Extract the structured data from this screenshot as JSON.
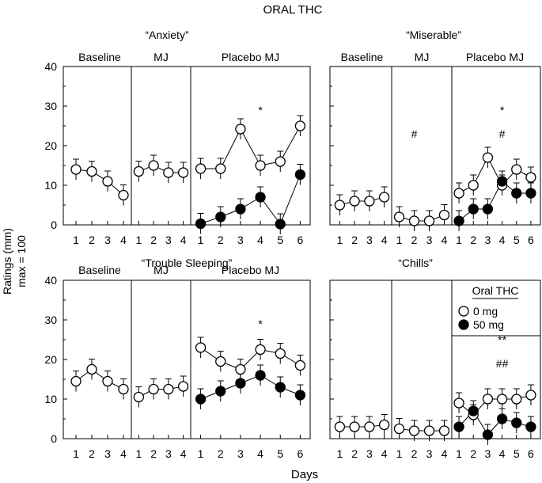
{
  "figure": {
    "title": "ORAL THC",
    "ylabel_line1": "Ratings (mm)",
    "ylabel_line2": "max = 100",
    "xlabel": "Days"
  },
  "legend": {
    "title": "Oral THC",
    "items": [
      {
        "label": "0 mg",
        "marker": "open-circle"
      },
      {
        "label": "50 mg",
        "marker": "filled-circle"
      }
    ],
    "placement": "top-right of Chills panel"
  },
  "chart_data": [
    {
      "type": "line",
      "title": "“Anxiety”",
      "phases": [
        "Baseline",
        "MJ",
        "Placebo MJ"
      ],
      "phase_days": [
        [
          "1",
          "2",
          "3",
          "4"
        ],
        [
          "1",
          "2",
          "3",
          "4"
        ],
        [
          "1",
          "2",
          "3",
          "4",
          "5",
          "6"
        ]
      ],
      "ylim": [
        0,
        40
      ],
      "yticks": [
        "0",
        "10",
        "20",
        "30",
        "40"
      ],
      "series": [
        {
          "name": "0 mg",
          "segments": [
            [
              14,
              13.5,
              11,
              7.5
            ],
            [
              13.5,
              15,
              13.2,
              13.2
            ],
            [
              14.2,
              14.2,
              24.2,
              15,
              16,
              25
            ]
          ]
        },
        {
          "name": "50 mg",
          "segments": [
            [],
            [],
            [
              0.3,
              2,
              4,
              7,
              0.2,
              12.7
            ]
          ]
        }
      ],
      "annotations": [
        {
          "text": "*",
          "phase": 2,
          "day": 4
        }
      ]
    },
    {
      "type": "line",
      "title": "“Miserable”",
      "phases": [
        "Baseline",
        "MJ",
        "Placebo MJ"
      ],
      "phase_days": [
        [
          "1",
          "2",
          "3",
          "4"
        ],
        [
          "1",
          "2",
          "3",
          "4"
        ],
        [
          "1",
          "2",
          "3",
          "4",
          "5",
          "6"
        ]
      ],
      "ylim": [
        0,
        40
      ],
      "yticks": [
        "0",
        "10",
        "20",
        "30",
        "40"
      ],
      "series": [
        {
          "name": "0 mg",
          "segments": [
            [
              5,
              6,
              6,
              7
            ],
            [
              2,
              1,
              1,
              2.5
            ],
            [
              8,
              10,
              17,
              10,
              14,
              12
            ]
          ]
        },
        {
          "name": "50 mg",
          "segments": [
            [],
            [],
            [
              1,
              4,
              4,
              11,
              8,
              8
            ]
          ]
        }
      ],
      "annotations": [
        {
          "text": "#",
          "phase": 1,
          "day": 2
        },
        {
          "text": "*",
          "phase": 2,
          "day": 4
        },
        {
          "text": "#",
          "phase": 2,
          "day": 4
        }
      ]
    },
    {
      "type": "line",
      "title": "“Trouble Sleeping”",
      "phases": [
        "Baseline",
        "MJ",
        "Placebo MJ"
      ],
      "phase_days": [
        [
          "1",
          "2",
          "3",
          "4"
        ],
        [
          "1",
          "2",
          "3",
          "4"
        ],
        [
          "1",
          "2",
          "3",
          "4",
          "5",
          "6"
        ]
      ],
      "ylim": [
        0,
        40
      ],
      "yticks": [
        "0",
        "10",
        "20",
        "30",
        "40"
      ],
      "series": [
        {
          "name": "0 mg",
          "segments": [
            [
              14.5,
              17.5,
              14.5,
              12.5
            ],
            [
              10.5,
              12.5,
              12.5,
              13.2
            ],
            [
              23,
              19.5,
              17.5,
              22.5,
              21.5,
              18.5
            ]
          ]
        },
        {
          "name": "50 mg",
          "segments": [
            [],
            [],
            [
              10,
              12,
              14,
              16,
              13,
              11
            ]
          ]
        }
      ],
      "annotations": [
        {
          "text": "*",
          "phase": 2,
          "day": 4
        }
      ]
    },
    {
      "type": "line",
      "title": "“Chills”",
      "phases": [],
      "phase_days": [
        [
          "1",
          "2",
          "3",
          "4"
        ],
        [
          "1",
          "2",
          "3",
          "4"
        ],
        [
          "1",
          "2",
          "3",
          "4",
          "5",
          "6"
        ]
      ],
      "ylim": [
        0,
        40
      ],
      "yticks": [
        "0",
        "10",
        "20",
        "30",
        "40"
      ],
      "series": [
        {
          "name": "0 mg",
          "segments": [
            [
              3,
              3,
              3,
              3.5
            ],
            [
              2.5,
              2,
              2,
              2
            ],
            [
              9,
              6,
              10,
              10,
              10,
              11
            ]
          ]
        },
        {
          "name": "50 mg",
          "segments": [
            [],
            [],
            [
              3,
              7,
              1,
              5,
              4,
              3
            ]
          ]
        }
      ],
      "annotations": [
        {
          "text": "**",
          "phase": 2,
          "day": 4
        },
        {
          "text": "##",
          "phase": 2,
          "day": 4
        }
      ]
    }
  ]
}
